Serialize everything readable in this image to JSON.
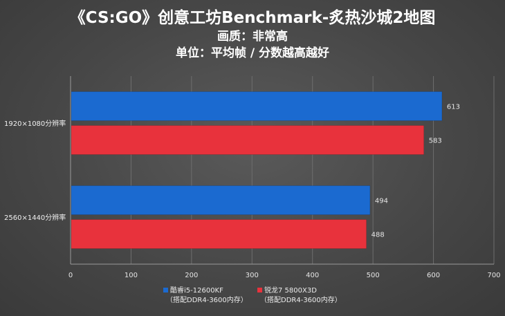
{
  "chart_data": {
    "type": "bar",
    "orientation": "horizontal",
    "title": "《CS:GO》创意工坊Benchmark-炙热沙城2地图",
    "subtitle": "画质：非常高",
    "subtitle2": "单位：平均帧 / 分数越高越好",
    "categories": [
      "1920×1080分辨率",
      "2560×1440分辨率"
    ],
    "series": [
      {
        "name": "酷睿i5-12600KF",
        "note": "（搭配DDR4-3600内存）",
        "color": "#1b6ad0",
        "values": [
          613,
          494
        ]
      },
      {
        "name": "锐龙7 5800X3D",
        "note": "（搭配DDR4-3600内存）",
        "color": "#e8323c",
        "values": [
          583,
          488
        ]
      }
    ],
    "xlim": [
      0,
      700
    ],
    "xticks": [
      0,
      100,
      200,
      300,
      400,
      500,
      600,
      700
    ],
    "grid": true,
    "legend_position": "bottom"
  }
}
